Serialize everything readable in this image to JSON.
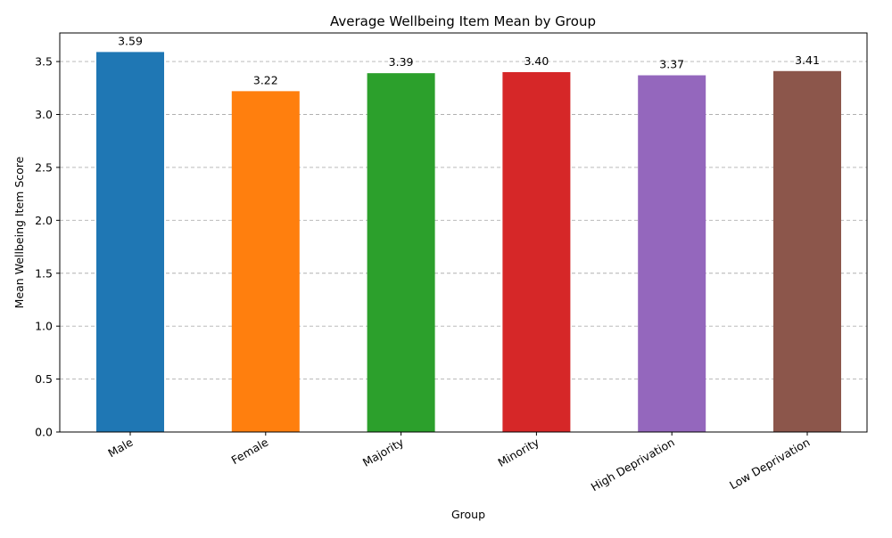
{
  "chart_data": {
    "type": "bar",
    "title": "Average Wellbeing Item Mean by Group",
    "xlabel": "Group",
    "ylabel": "Mean Wellbeing Item Score",
    "categories": [
      "Male",
      "Female",
      "Majority",
      "Minority",
      "High Deprivation",
      "Low Deprivation"
    ],
    "values": [
      3.59,
      3.22,
      3.39,
      3.4,
      3.37,
      3.41
    ],
    "value_labels": [
      "3.59",
      "3.22",
      "3.39",
      "3.40",
      "3.37",
      "3.41"
    ],
    "colors": [
      "#1f77b4",
      "#ff7f0e",
      "#2ca02c",
      "#d62728",
      "#9467bd",
      "#8c564b"
    ],
    "yticks": [
      0.0,
      0.5,
      1.0,
      1.5,
      2.0,
      2.5,
      3.0,
      3.5
    ],
    "ytick_labels": [
      "0.0",
      "0.5",
      "1.0",
      "1.5",
      "2.0",
      "2.5",
      "3.0",
      "3.5"
    ],
    "ylim": [
      0,
      3.77
    ],
    "grid": "y-dashed",
    "legend": "none"
  }
}
